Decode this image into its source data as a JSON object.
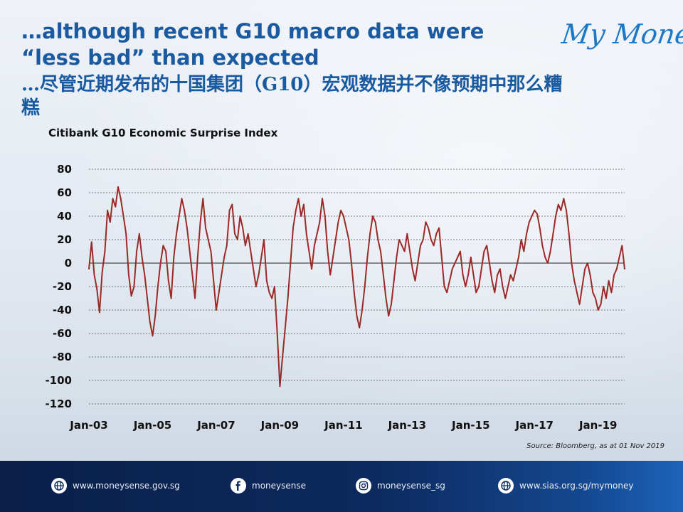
{
  "title_en": "…although recent G10 macro data were “less bad” than expected",
  "title_zh": "…尽管近期发布的十国集团（G10）宏观数据并不像预期中那么糟糕",
  "logo": "My Money",
  "source": "Source: Bloomberg, as at 01 Nov 2019",
  "footer": {
    "links": [
      {
        "icon": "globe-icon",
        "text": "www.moneysense.gov.sg"
      },
      {
        "icon": "facebook-icon",
        "text": "moneysense"
      },
      {
        "icon": "instagram-icon",
        "text": "moneysense_sg"
      },
      {
        "icon": "globe-icon",
        "text": "www.sias.org.sg/mymoney"
      }
    ]
  },
  "chart_data": {
    "type": "line",
    "title": "Citibank G10 Economic Surprise Index",
    "xlabel": "",
    "ylabel": "",
    "ylim": [
      -120,
      80
    ],
    "yticks": [
      80,
      60,
      40,
      20,
      0,
      -20,
      -40,
      -60,
      -80,
      -100,
      -120
    ],
    "xticks": [
      "Jan-03",
      "Jan-05",
      "Jan-07",
      "Jan-09",
      "Jan-11",
      "Jan-13",
      "Jan-15",
      "Jan-17",
      "Jan-19"
    ],
    "xlim": [
      "2003-01",
      "2019-11"
    ],
    "grid": true,
    "line_color": "#9b2a26",
    "series": [
      {
        "name": "",
        "points": [
          [
            "2003-01",
            -5
          ],
          [
            "2003-02",
            18
          ],
          [
            "2003-03",
            -10
          ],
          [
            "2003-04",
            -22
          ],
          [
            "2003-05",
            -42
          ],
          [
            "2003-06",
            -8
          ],
          [
            "2003-07",
            10
          ],
          [
            "2003-08",
            45
          ],
          [
            "2003-09",
            35
          ],
          [
            "2003-10",
            55
          ],
          [
            "2003-11",
            48
          ],
          [
            "2003-12",
            65
          ],
          [
            "2004-01",
            55
          ],
          [
            "2004-02",
            40
          ],
          [
            "2004-03",
            25
          ],
          [
            "2004-04",
            -10
          ],
          [
            "2004-05",
            -28
          ],
          [
            "2004-06",
            -20
          ],
          [
            "2004-07",
            10
          ],
          [
            "2004-08",
            25
          ],
          [
            "2004-09",
            5
          ],
          [
            "2004-10",
            -10
          ],
          [
            "2004-11",
            -30
          ],
          [
            "2004-12",
            -50
          ],
          [
            "2005-01",
            -62
          ],
          [
            "2005-02",
            -45
          ],
          [
            "2005-03",
            -20
          ],
          [
            "2005-04",
            0
          ],
          [
            "2005-05",
            15
          ],
          [
            "2005-06",
            10
          ],
          [
            "2005-07",
            -15
          ],
          [
            "2005-08",
            -30
          ],
          [
            "2005-09",
            5
          ],
          [
            "2005-10",
            25
          ],
          [
            "2005-11",
            40
          ],
          [
            "2005-12",
            55
          ],
          [
            "2006-01",
            45
          ],
          [
            "2006-02",
            30
          ],
          [
            "2006-03",
            10
          ],
          [
            "2006-04",
            -10
          ],
          [
            "2006-05",
            -30
          ],
          [
            "2006-06",
            5
          ],
          [
            "2006-07",
            35
          ],
          [
            "2006-08",
            55
          ],
          [
            "2006-09",
            30
          ],
          [
            "2006-10",
            20
          ],
          [
            "2006-11",
            10
          ],
          [
            "2006-12",
            -15
          ],
          [
            "2007-01",
            -40
          ],
          [
            "2007-02",
            -25
          ],
          [
            "2007-03",
            -10
          ],
          [
            "2007-04",
            5
          ],
          [
            "2007-05",
            15
          ],
          [
            "2007-06",
            45
          ],
          [
            "2007-07",
            50
          ],
          [
            "2007-08",
            25
          ],
          [
            "2007-09",
            20
          ],
          [
            "2007-10",
            40
          ],
          [
            "2007-11",
            30
          ],
          [
            "2007-12",
            15
          ],
          [
            "2008-01",
            25
          ],
          [
            "2008-02",
            10
          ],
          [
            "2008-03",
            -5
          ],
          [
            "2008-04",
            -20
          ],
          [
            "2008-05",
            -10
          ],
          [
            "2008-06",
            5
          ],
          [
            "2008-07",
            20
          ],
          [
            "2008-08",
            -15
          ],
          [
            "2008-09",
            -25
          ],
          [
            "2008-10",
            -30
          ],
          [
            "2008-11",
            -20
          ],
          [
            "2008-12",
            -60
          ],
          [
            "2009-01",
            -105
          ],
          [
            "2009-02",
            -80
          ],
          [
            "2009-03",
            -55
          ],
          [
            "2009-04",
            -30
          ],
          [
            "2009-05",
            0
          ],
          [
            "2009-06",
            30
          ],
          [
            "2009-07",
            45
          ],
          [
            "2009-08",
            55
          ],
          [
            "2009-09",
            40
          ],
          [
            "2009-10",
            50
          ],
          [
            "2009-11",
            25
          ],
          [
            "2009-12",
            10
          ],
          [
            "2010-01",
            -5
          ],
          [
            "2010-02",
            15
          ],
          [
            "2010-03",
            25
          ],
          [
            "2010-04",
            35
          ],
          [
            "2010-05",
            55
          ],
          [
            "2010-06",
            40
          ],
          [
            "2010-07",
            10
          ],
          [
            "2010-08",
            -10
          ],
          [
            "2010-09",
            5
          ],
          [
            "2010-10",
            20
          ],
          [
            "2010-11",
            35
          ],
          [
            "2010-12",
            45
          ],
          [
            "2011-01",
            40
          ],
          [
            "2011-02",
            30
          ],
          [
            "2011-03",
            20
          ],
          [
            "2011-04",
            0
          ],
          [
            "2011-05",
            -25
          ],
          [
            "2011-06",
            -45
          ],
          [
            "2011-07",
            -55
          ],
          [
            "2011-08",
            -40
          ],
          [
            "2011-09",
            -20
          ],
          [
            "2011-10",
            5
          ],
          [
            "2011-11",
            25
          ],
          [
            "2011-12",
            40
          ],
          [
            "2012-01",
            35
          ],
          [
            "2012-02",
            20
          ],
          [
            "2012-03",
            10
          ],
          [
            "2012-04",
            -10
          ],
          [
            "2012-05",
            -30
          ],
          [
            "2012-06",
            -45
          ],
          [
            "2012-07",
            -35
          ],
          [
            "2012-08",
            -15
          ],
          [
            "2012-09",
            5
          ],
          [
            "2012-10",
            20
          ],
          [
            "2012-11",
            15
          ],
          [
            "2012-12",
            10
          ],
          [
            "2013-01",
            25
          ],
          [
            "2013-02",
            10
          ],
          [
            "2013-03",
            -5
          ],
          [
            "2013-04",
            -15
          ],
          [
            "2013-05",
            0
          ],
          [
            "2013-06",
            15
          ],
          [
            "2013-07",
            20
          ],
          [
            "2013-08",
            35
          ],
          [
            "2013-09",
            30
          ],
          [
            "2013-10",
            20
          ],
          [
            "2013-11",
            15
          ],
          [
            "2013-12",
            25
          ],
          [
            "2014-01",
            30
          ],
          [
            "2014-02",
            5
          ],
          [
            "2014-03",
            -20
          ],
          [
            "2014-04",
            -25
          ],
          [
            "2014-05",
            -15
          ],
          [
            "2014-06",
            -5
          ],
          [
            "2014-07",
            0
          ],
          [
            "2014-08",
            5
          ],
          [
            "2014-09",
            10
          ],
          [
            "2014-10",
            -10
          ],
          [
            "2014-11",
            -20
          ],
          [
            "2014-12",
            -10
          ],
          [
            "2015-01",
            5
          ],
          [
            "2015-02",
            -10
          ],
          [
            "2015-03",
            -25
          ],
          [
            "2015-04",
            -20
          ],
          [
            "2015-05",
            -5
          ],
          [
            "2015-06",
            10
          ],
          [
            "2015-07",
            15
          ],
          [
            "2015-08",
            0
          ],
          [
            "2015-09",
            -15
          ],
          [
            "2015-10",
            -25
          ],
          [
            "2015-11",
            -10
          ],
          [
            "2015-12",
            -5
          ],
          [
            "2016-01",
            -20
          ],
          [
            "2016-02",
            -30
          ],
          [
            "2016-03",
            -20
          ],
          [
            "2016-04",
            -10
          ],
          [
            "2016-05",
            -15
          ],
          [
            "2016-06",
            -5
          ],
          [
            "2016-07",
            5
          ],
          [
            "2016-08",
            20
          ],
          [
            "2016-09",
            10
          ],
          [
            "2016-10",
            25
          ],
          [
            "2016-11",
            35
          ],
          [
            "2016-12",
            40
          ],
          [
            "2017-01",
            45
          ],
          [
            "2017-02",
            42
          ],
          [
            "2017-03",
            30
          ],
          [
            "2017-04",
            15
          ],
          [
            "2017-05",
            5
          ],
          [
            "2017-06",
            0
          ],
          [
            "2017-07",
            10
          ],
          [
            "2017-08",
            25
          ],
          [
            "2017-09",
            40
          ],
          [
            "2017-10",
            50
          ],
          [
            "2017-11",
            45
          ],
          [
            "2017-12",
            55
          ],
          [
            "2018-01",
            45
          ],
          [
            "2018-02",
            25
          ],
          [
            "2018-03",
            0
          ],
          [
            "2018-04",
            -15
          ],
          [
            "2018-05",
            -25
          ],
          [
            "2018-06",
            -35
          ],
          [
            "2018-07",
            -20
          ],
          [
            "2018-08",
            -5
          ],
          [
            "2018-09",
            0
          ],
          [
            "2018-10",
            -10
          ],
          [
            "2018-11",
            -25
          ],
          [
            "2018-12",
            -30
          ],
          [
            "2019-01",
            -40
          ],
          [
            "2019-02",
            -35
          ],
          [
            "2019-03",
            -20
          ],
          [
            "2019-04",
            -30
          ],
          [
            "2019-05",
            -15
          ],
          [
            "2019-06",
            -25
          ],
          [
            "2019-07",
            -10
          ],
          [
            "2019-08",
            -5
          ],
          [
            "2019-09",
            5
          ],
          [
            "2019-10",
            15
          ],
          [
            "2019-11",
            -5
          ]
        ]
      }
    ]
  }
}
